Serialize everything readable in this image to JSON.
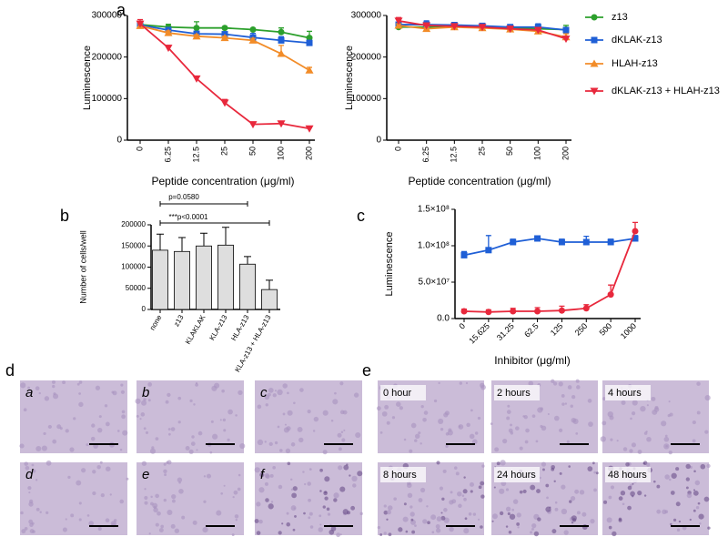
{
  "chart_data": [
    {
      "type": "line",
      "ylabel": "Luminescence",
      "xlabel": "Peptide concentration (μg/ml)",
      "categories": [
        "0",
        "6.25",
        "12.5",
        "25",
        "50",
        "100",
        "200"
      ],
      "ylim": [
        0,
        300000
      ],
      "yticks": [
        0,
        100000,
        200000,
        300000
      ],
      "series": [
        {
          "name": "z13",
          "color": "#2ca02c",
          "marker": "circle",
          "values": [
            278000,
            272000,
            270000,
            270000,
            266000,
            260000,
            246000
          ],
          "errors": [
            6000,
            7000,
            15000,
            3000,
            3000,
            10000,
            16000
          ]
        },
        {
          "name": "dKLAK-z13",
          "color": "#1f5fd6",
          "marker": "square",
          "values": [
            277000,
            265000,
            256000,
            255000,
            247000,
            240000,
            234000
          ],
          "errors": [
            4000,
            6000,
            5000,
            4000,
            10000,
            9000,
            6000
          ]
        },
        {
          "name": "HLAH-z13",
          "color": "#f28c28",
          "marker": "triangle-up",
          "values": [
            275000,
            258000,
            250000,
            246000,
            240000,
            208000,
            168000
          ],
          "errors": [
            5000,
            5000,
            4000,
            4000,
            5000,
            20000,
            7000
          ]
        },
        {
          "name": "dKLAK-z13 + HLAH-z13",
          "color": "#e8283c",
          "marker": "triangle-down",
          "values": [
            280000,
            222000,
            148000,
            90000,
            38000,
            40000,
            28000
          ],
          "errors": [
            10000,
            6000,
            5000,
            8000,
            2000,
            2000,
            2000
          ]
        }
      ]
    },
    {
      "type": "line",
      "ylabel": "Luminescence",
      "xlabel": "Peptide concentration (μg/ml)",
      "categories": [
        "0",
        "6.25",
        "12.5",
        "25",
        "50",
        "100",
        "200"
      ],
      "ylim": [
        0,
        300000
      ],
      "yticks": [
        0,
        100000,
        200000,
        300000
      ],
      "series": [
        {
          "color": "#2ca02c",
          "marker": "circle",
          "values": [
            272000,
            272000,
            274000,
            273000,
            270000,
            268000,
            266000
          ],
          "errors": [
            4000,
            5000,
            3000,
            3000,
            3000,
            5000,
            10000
          ]
        },
        {
          "color": "#1f5fd6",
          "marker": "square",
          "values": [
            278000,
            278000,
            277000,
            275000,
            272000,
            272000,
            265000
          ],
          "errors": [
            5000,
            9000,
            5000,
            4000,
            6000,
            8000,
            6000
          ]
        },
        {
          "color": "#f28c28",
          "marker": "triangle-up",
          "values": [
            276000,
            268000,
            272000,
            270000,
            267000,
            262000,
            248000
          ],
          "errors": [
            4000,
            4000,
            3000,
            4000,
            3000,
            5000,
            8000
          ]
        },
        {
          "color": "#e8283c",
          "marker": "triangle-down",
          "values": [
            287000,
            276000,
            274000,
            272000,
            268000,
            265000,
            244000
          ],
          "errors": [
            8000,
            5000,
            4000,
            4000,
            3000,
            4000,
            4000
          ]
        }
      ]
    },
    {
      "type": "bar",
      "ylabel": "Number of cells/well",
      "categories": [
        "none",
        "z13",
        "KLAKLAK",
        "KLA-z13",
        "HLA-z13",
        "KLA-z13 + HLA-z13"
      ],
      "values": [
        140000,
        137000,
        150000,
        152000,
        107000,
        47000
      ],
      "errors": [
        38000,
        33000,
        30000,
        42000,
        18000,
        22000
      ],
      "color": "#dedede",
      "ylim": [
        0,
        200000
      ],
      "yticks": [
        0,
        50000,
        100000,
        150000,
        200000
      ],
      "annotations": [
        "p=0.0580",
        "***p<0.0001"
      ]
    },
    {
      "type": "line",
      "ylabel": "Luminescence",
      "xlabel": "Inhibitor (μg/ml)",
      "categories": [
        "0",
        "15.625",
        "31.25",
        "62.5",
        "125",
        "250",
        "500",
        "1000"
      ],
      "ylim": [
        0,
        150000000
      ],
      "yticks": [
        {
          "value": 0,
          "label": "0.0"
        },
        {
          "value": 50000000,
          "label": "5.0×10⁷"
        },
        {
          "value": 100000000,
          "label": "1.0×10⁸"
        },
        {
          "value": 150000000,
          "label": "1.5×10⁸"
        }
      ],
      "series": [
        {
          "color": "#1f5fd6",
          "marker": "square",
          "values": [
            87000000,
            94000000,
            105000000,
            110000000,
            105000000,
            105000000,
            105000000,
            110000000
          ],
          "errors": [
            5000000,
            20000000,
            4000000,
            2000000,
            4000000,
            8000000,
            4000000,
            4000000
          ]
        },
        {
          "color": "#e8283c",
          "marker": "circle",
          "values": [
            10000000,
            9000000,
            10000000,
            10000000,
            11000000,
            14000000,
            33000000,
            120000000
          ],
          "errors": [
            3000000,
            3000000,
            4000000,
            5000000,
            6000000,
            5000000,
            13000000,
            12000000
          ]
        }
      ]
    }
  ],
  "panel_labels": [
    "a",
    "b",
    "c",
    "d",
    "e"
  ],
  "micrographs": {
    "d": [
      "a",
      "b",
      "c",
      "d",
      "e",
      "f"
    ],
    "e": [
      "0 hour",
      "2 hours",
      "4 hours",
      "8 hours",
      "24 hours",
      "48 hours"
    ]
  }
}
